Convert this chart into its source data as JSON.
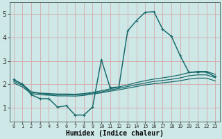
{
  "background_color": "#cee8e8",
  "grid_color": "#b0cccc",
  "line_color": "#1a6b6b",
  "xlabel": "Humidex (Indice chaleur)",
  "x_ticks": [
    0,
    1,
    2,
    3,
    4,
    5,
    6,
    7,
    8,
    9,
    10,
    11,
    12,
    13,
    14,
    15,
    16,
    17,
    18,
    19,
    20,
    21,
    22,
    23
  ],
  "y_ticks": [
    1,
    2,
    3,
    4,
    5
  ],
  "xlim": [
    -0.5,
    23.5
  ],
  "ylim": [
    0.4,
    5.5
  ],
  "series": [
    {
      "x": [
        0,
        1,
        2,
        3,
        4,
        5,
        6,
        7,
        8,
        9,
        10,
        11,
        12,
        13,
        14,
        15,
        16,
        17,
        18,
        19,
        20,
        21,
        22,
        23
      ],
      "y": [
        2.2,
        2.0,
        1.55,
        1.38,
        1.38,
        1.02,
        1.08,
        0.68,
        0.68,
        1.02,
        3.05,
        1.85,
        1.88,
        4.28,
        4.72,
        5.08,
        5.1,
        4.35,
        4.05,
        3.22,
        2.5,
        2.52,
        2.52,
        2.32
      ],
      "marker": "+",
      "linewidth": 1.1
    },
    {
      "x": [
        0,
        1,
        2,
        3,
        4,
        5,
        6,
        7,
        8,
        9,
        10,
        11,
        12,
        13,
        14,
        15,
        16,
        17,
        18,
        19,
        20,
        21,
        22,
        23
      ],
      "y": [
        2.18,
        2.0,
        1.68,
        1.62,
        1.6,
        1.58,
        1.58,
        1.57,
        1.6,
        1.65,
        1.72,
        1.8,
        1.88,
        1.97,
        2.07,
        2.15,
        2.22,
        2.27,
        2.33,
        2.4,
        2.5,
        2.55,
        2.55,
        2.42
      ],
      "marker": null,
      "linewidth": 0.9
    },
    {
      "x": [
        0,
        1,
        2,
        3,
        4,
        5,
        6,
        7,
        8,
        9,
        10,
        11,
        12,
        13,
        14,
        15,
        16,
        17,
        18,
        19,
        20,
        21,
        22,
        23
      ],
      "y": [
        2.12,
        1.95,
        1.65,
        1.6,
        1.57,
        1.55,
        1.55,
        1.54,
        1.57,
        1.62,
        1.67,
        1.75,
        1.82,
        1.9,
        1.98,
        2.05,
        2.12,
        2.16,
        2.21,
        2.27,
        2.36,
        2.4,
        2.4,
        2.28
      ],
      "marker": null,
      "linewidth": 0.9
    },
    {
      "x": [
        0,
        1,
        2,
        3,
        4,
        5,
        6,
        7,
        8,
        9,
        10,
        11,
        12,
        13,
        14,
        15,
        16,
        17,
        18,
        19,
        20,
        21,
        22,
        23
      ],
      "y": [
        2.05,
        1.88,
        1.6,
        1.55,
        1.53,
        1.5,
        1.5,
        1.49,
        1.52,
        1.58,
        1.63,
        1.7,
        1.76,
        1.83,
        1.9,
        1.97,
        2.02,
        2.06,
        2.1,
        2.15,
        2.22,
        2.26,
        2.26,
        2.14
      ],
      "marker": null,
      "linewidth": 0.9
    }
  ]
}
